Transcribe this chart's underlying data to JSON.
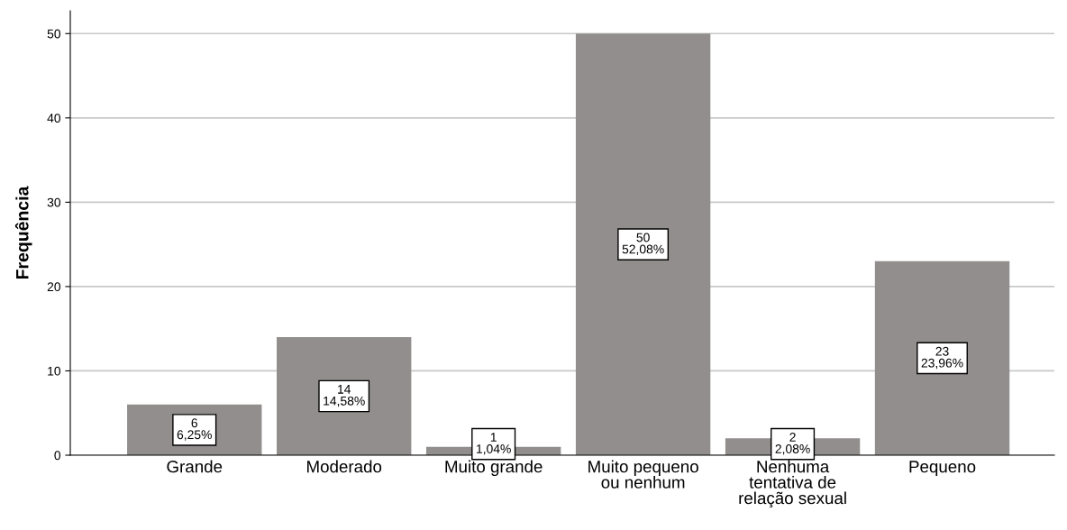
{
  "chart_data": {
    "type": "bar",
    "ylabel": "Frequência",
    "categories": [
      "Grande",
      "Moderado",
      "Muito grande",
      "Muito pequeno\nou nenhum",
      "Nenhuma\ntentativa de\nrelação sexual",
      "Pequeno"
    ],
    "values": [
      6,
      14,
      1,
      50,
      2,
      23
    ],
    "color": "#918e8d",
    "value_labels": [
      "6\n6,25%",
      "14\n14,58%",
      "1\n1,04%",
      "50\n52,08%",
      "2\n2,08%",
      "23\n23,96%"
    ],
    "ylim": [
      0,
      52.7
    ],
    "yticks": [
      0,
      10,
      20,
      30,
      40,
      50
    ],
    "grid": "y"
  }
}
